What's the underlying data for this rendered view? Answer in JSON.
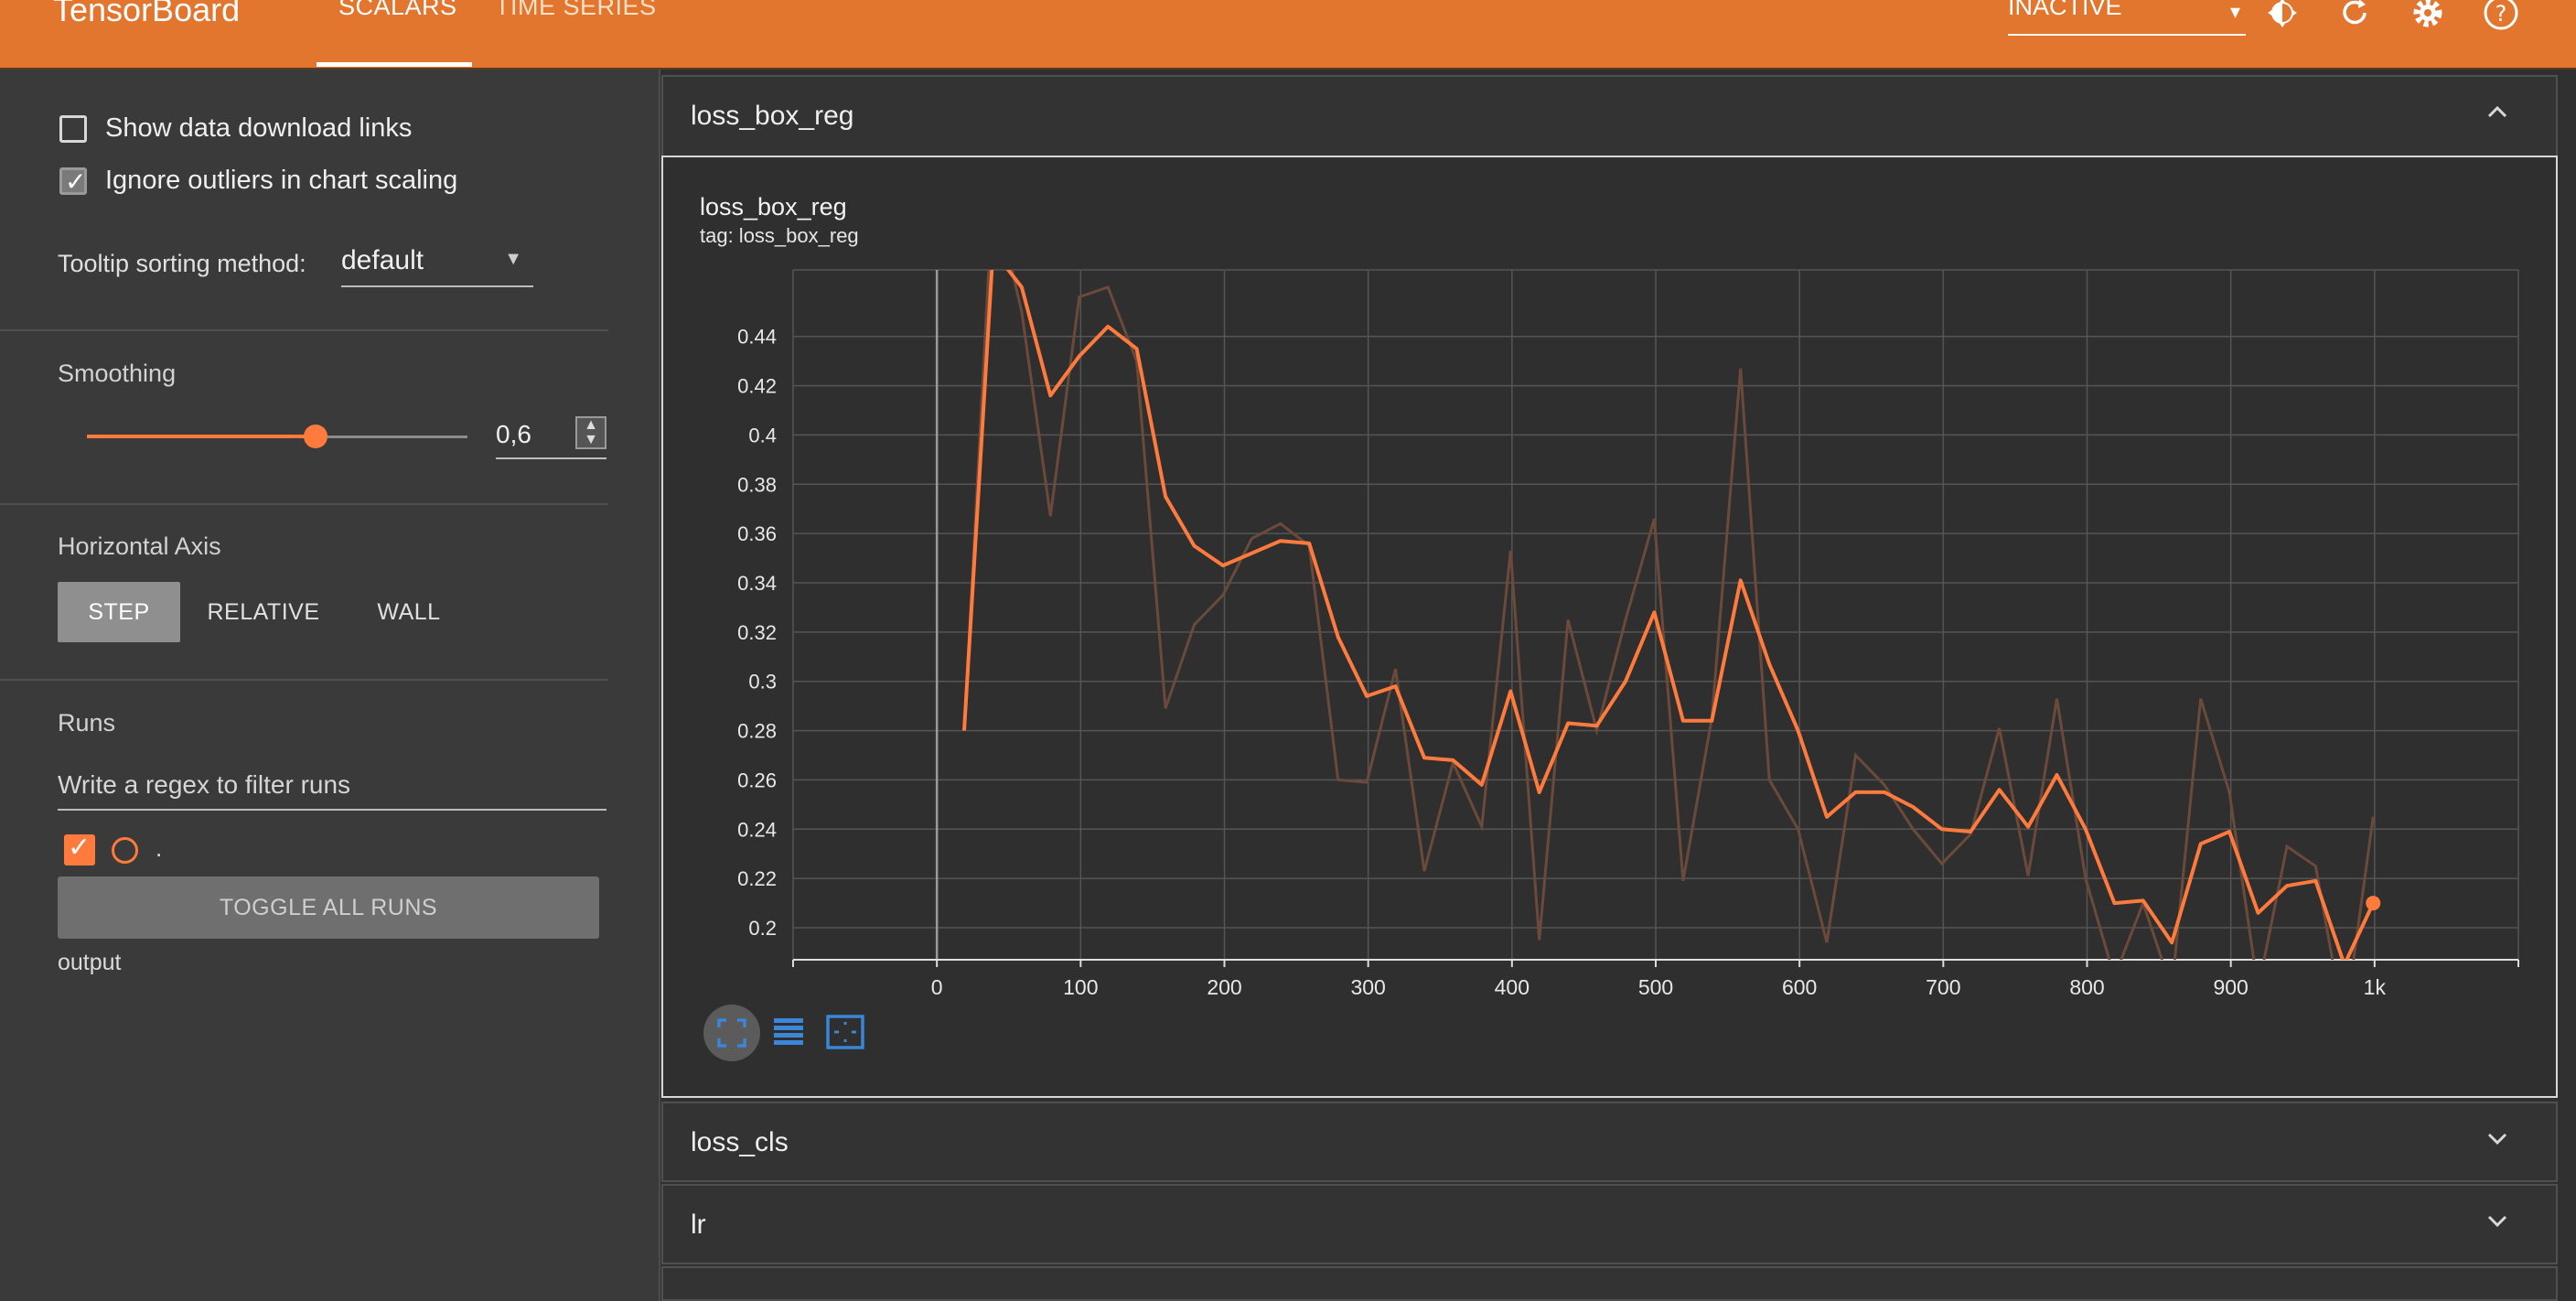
{
  "app": {
    "brand": "TensorBoard",
    "tabs": [
      {
        "label": "SCALARS",
        "active": true
      },
      {
        "label": "TIME SERIES",
        "active": false
      }
    ],
    "run_status": "INACTIVE"
  },
  "sidebar": {
    "show_download_links": {
      "label": "Show data download links",
      "checked": false
    },
    "ignore_outliers": {
      "label": "Ignore outliers in chart scaling",
      "checked": true
    },
    "tooltip_sorting": {
      "label": "Tooltip sorting method:",
      "value": "default"
    },
    "smoothing": {
      "title": "Smoothing",
      "value": "0,6",
      "level": 0.6
    },
    "horizontal_axis": {
      "title": "Horizontal Axis",
      "options": [
        "STEP",
        "RELATIVE",
        "WALL"
      ],
      "selected": "STEP"
    },
    "runs": {
      "title": "Runs",
      "filter_placeholder": "Write a regex to filter runs",
      "items": [
        {
          "name": ".",
          "checked": true
        }
      ],
      "toggle_label": "TOGGLE ALL RUNS",
      "output_label": "output"
    }
  },
  "cards": {
    "expanded": {
      "title": "loss_box_reg",
      "chart_title": "loss_box_reg",
      "chart_tag": "tag: loss_box_reg"
    },
    "collapsed": [
      {
        "title": "loss_cls"
      },
      {
        "title": "lr"
      }
    ]
  },
  "icons": {
    "brightness": "brightness-icon",
    "refresh": "refresh-icon",
    "settings": "gear-icon",
    "help": "help-icon",
    "expand": "chevron-up-icon",
    "collapse": "chevron-down-icon"
  },
  "colors": {
    "accent": "#ff7a3d",
    "topbar": "#e2762f"
  },
  "chart_data": {
    "type": "line",
    "title": "loss_box_reg",
    "subtitle": "tag: loss_box_reg",
    "x_ticks": [
      "0",
      "100",
      "200",
      "300",
      "400",
      "500",
      "600",
      "700",
      "800",
      "900",
      "1k"
    ],
    "y_ticks": [
      "0.2",
      "0.22",
      "0.24",
      "0.26",
      "0.28",
      "0.3",
      "0.32",
      "0.34",
      "0.36",
      "0.38",
      "0.4",
      "0.42",
      "0.44"
    ],
    "xlim": [
      -100,
      1100
    ],
    "ylim": [
      0.187,
      0.467
    ],
    "grid": true,
    "series": [
      {
        "smoothed": true,
        "color": "#ff7a3d",
        "x": [
          19,
          39,
          59,
          79,
          99,
          119,
          139,
          159,
          179,
          199,
          219,
          239,
          259,
          279,
          299,
          319,
          339,
          359,
          379,
          399,
          419,
          439,
          459,
          479,
          499,
          519,
          539,
          559,
          579,
          599,
          619,
          639,
          659,
          679,
          699,
          719,
          739,
          759,
          779,
          799,
          819,
          839,
          859,
          879,
          899,
          919,
          939,
          959,
          979,
          999
        ],
        "y": [
          0.28,
          0.475,
          0.46,
          0.416,
          0.432,
          0.444,
          0.435,
          0.375,
          0.355,
          0.347,
          0.352,
          0.357,
          0.356,
          0.318,
          0.294,
          0.298,
          0.269,
          0.268,
          0.258,
          0.296,
          0.255,
          0.283,
          0.282,
          0.3,
          0.328,
          0.284,
          0.284,
          0.341,
          0.307,
          0.28,
          0.245,
          0.255,
          0.255,
          0.249,
          0.24,
          0.239,
          0.256,
          0.241,
          0.262,
          0.24,
          0.21,
          0.211,
          0.194,
          0.234,
          0.239,
          0.206,
          0.217,
          0.219,
          0.185,
          0.21
        ]
      },
      {
        "smoothed": false,
        "color": "#6b4a3b",
        "x": [
          19,
          39,
          59,
          79,
          99,
          119,
          139,
          159,
          179,
          199,
          219,
          239,
          259,
          279,
          299,
          319,
          339,
          359,
          379,
          399,
          419,
          439,
          459,
          479,
          499,
          519,
          539,
          559,
          579,
          599,
          619,
          639,
          659,
          679,
          699,
          719,
          739,
          759,
          779,
          799,
          819,
          839,
          859,
          879,
          899,
          919,
          939,
          959,
          979,
          999
        ],
        "y": [
          0.28,
          0.5,
          0.45,
          0.367,
          0.456,
          0.46,
          0.43,
          0.289,
          0.323,
          0.335,
          0.358,
          0.364,
          0.355,
          0.26,
          0.259,
          0.305,
          0.223,
          0.267,
          0.241,
          0.353,
          0.195,
          0.325,
          0.28,
          0.325,
          0.366,
          0.219,
          0.285,
          0.427,
          0.26,
          0.24,
          0.194,
          0.27,
          0.258,
          0.24,
          0.226,
          0.238,
          0.281,
          0.221,
          0.293,
          0.22,
          0.18,
          0.21,
          0.175,
          0.293,
          0.255,
          0.175,
          0.233,
          0.225,
          0.16,
          0.245
        ]
      }
    ]
  }
}
